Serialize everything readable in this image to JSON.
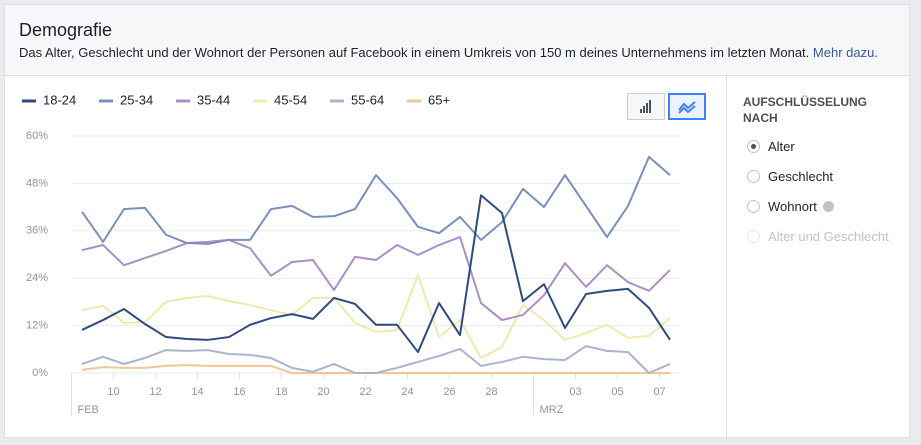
{
  "header": {
    "title": "Demografie",
    "description": "Das Alter, Geschlecht und der Wohnort der Personen auf Facebook in einem Umkreis von 150 m deines Unternehmens im letzten Monat.",
    "link": "Mehr dazu."
  },
  "sidebar": {
    "title": "AUFSCHLÜSSELUNG NACH",
    "options": [
      {
        "label": "Alter",
        "state": "checked"
      },
      {
        "label": "Geschlecht",
        "state": "unchecked"
      },
      {
        "label": "Wohnort",
        "state": "unchecked",
        "info": true
      },
      {
        "label": "Alter und Geschlecht",
        "state": "disabled"
      }
    ]
  },
  "chart_data": {
    "type": "line",
    "categories": [
      null,
      null,
      "10",
      null,
      "12",
      null,
      "14",
      null,
      "16",
      null,
      "18",
      null,
      "20",
      null,
      "22",
      null,
      "24",
      null,
      "26",
      null,
      "28",
      null,
      null,
      null,
      "03",
      null,
      "05",
      null,
      "07"
    ],
    "months": [
      {
        "label": "FEB",
        "index": 0
      },
      {
        "label": "MRZ",
        "index": 22
      }
    ],
    "ylim": [
      0,
      60
    ],
    "yticks": [
      {
        "value": 0,
        "label": "0%"
      },
      {
        "value": 12,
        "label": "12%"
      },
      {
        "value": 24,
        "label": "24%"
      },
      {
        "value": 36,
        "label": "36%"
      },
      {
        "value": 48,
        "label": "48%"
      },
      {
        "value": 60,
        "label": "60%"
      }
    ],
    "grid": true,
    "legend": "top-left",
    "series": [
      {
        "name": "18-24",
        "color": "#2f4a80",
        "values": [
          10.9,
          13.4,
          16.2,
          12.4,
          9.1,
          8.6,
          8.4,
          9.1,
          12.2,
          13.9,
          14.9,
          13.7,
          19,
          17.5,
          12.2,
          12.2,
          5.3,
          17.7,
          9.6,
          45,
          40.5,
          18.2,
          22.5,
          11.4,
          20,
          20.8,
          21.3,
          16.5,
          8.4
        ]
      },
      {
        "name": "25-34",
        "color": "#7b8fbd",
        "values": [
          40.8,
          33.2,
          41.5,
          41.8,
          35,
          32.9,
          32.7,
          33.7,
          33.7,
          41.5,
          42.3,
          39.5,
          39.7,
          41.5,
          50.1,
          44.3,
          37,
          35.4,
          39.5,
          33.7,
          38.2,
          46.6,
          42,
          50.1,
          42.3,
          34.4,
          42.3,
          54.7,
          50.1
        ]
      },
      {
        "name": "35-44",
        "color": "#ac8fc6",
        "values": [
          31.1,
          32.4,
          27.3,
          29.1,
          30.9,
          32.9,
          33.2,
          33.7,
          31.6,
          24.6,
          28.1,
          28.6,
          21,
          29.4,
          28.6,
          32.4,
          29.9,
          32.4,
          34.4,
          17.7,
          13.4,
          14.7,
          19.7,
          27.8,
          21.8,
          27.3,
          23,
          20.8,
          26.1
        ]
      },
      {
        "name": "45-54",
        "color": "#efe9b0",
        "values": [
          15.9,
          17,
          12.7,
          12.9,
          18,
          19,
          19.5,
          18.2,
          17.2,
          15.9,
          14.7,
          19,
          19,
          12.7,
          10.4,
          10.9,
          24.8,
          9.1,
          13.4,
          3.8,
          6.6,
          17.2,
          13.4,
          8.4,
          10.1,
          12.2,
          8.9,
          9.4,
          13.9
        ]
      },
      {
        "name": "55-64",
        "color": "#a9b4cf",
        "values": [
          2.3,
          4.1,
          2.3,
          3.8,
          5.8,
          5.6,
          5.8,
          4.8,
          4.6,
          3.8,
          1.3,
          0.3,
          2.3,
          0,
          0,
          1.3,
          2.8,
          4.3,
          6.1,
          1.8,
          2.8,
          4.1,
          3.5,
          3.3,
          6.8,
          5.6,
          5.3,
          0,
          2.3
        ]
      },
      {
        "name": "65+",
        "color": "#f0c896",
        "values": [
          0.8,
          1.5,
          1.3,
          1.3,
          1.8,
          2,
          1.8,
          1.8,
          1.8,
          1.8,
          0,
          0,
          0,
          0,
          0,
          0,
          0,
          0,
          0,
          0,
          0,
          0,
          0,
          0,
          0,
          0,
          0,
          0,
          0
        ]
      }
    ]
  }
}
